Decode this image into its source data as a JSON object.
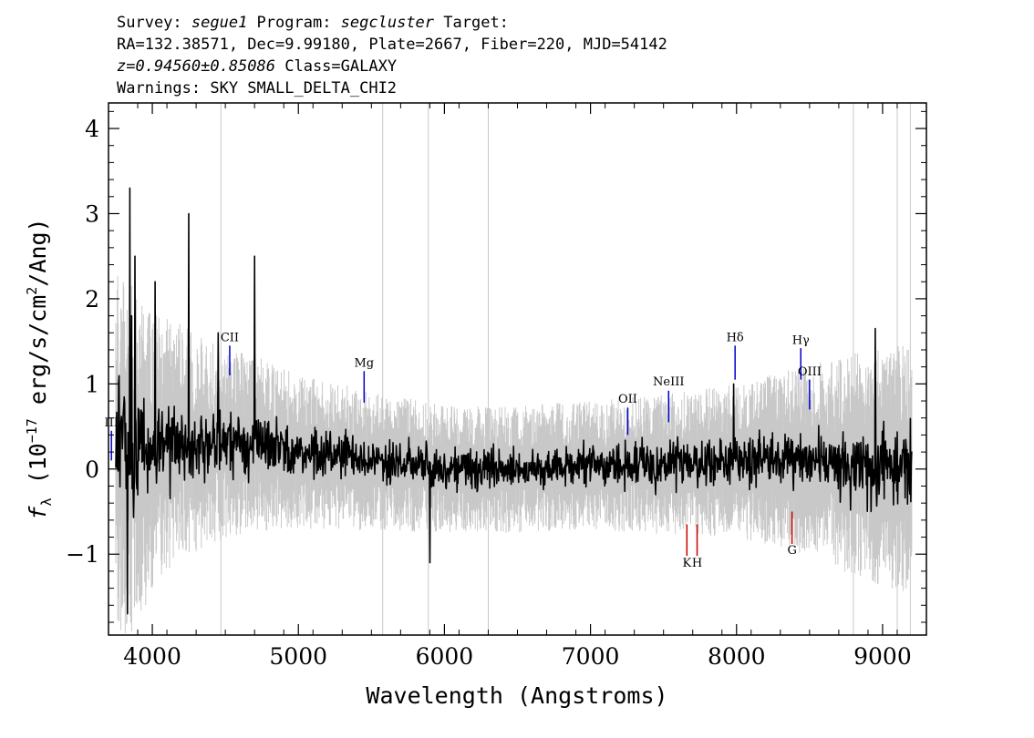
{
  "header": {
    "line1_prefix": "Survey: ",
    "survey": "segue1",
    "line1_mid": " Program: ",
    "program": "segcluster",
    "line1_suffix": " Target:",
    "line2": "RA=132.38571, Dec=9.99180, Plate=2667, Fiber=220, MJD=54142",
    "redshift": "z=0.94560±0.85086",
    "class_text": " Class=GALAXY",
    "warnings": "Warnings: SKY SMALL_DELTA_CHI2"
  },
  "chart_data": {
    "type": "line",
    "title": "",
    "xlabel": "Wavelength (Angstroms)",
    "ylabel": "fλ (10⁻¹⁷ erg/s/cm²/Ang)",
    "ylabel_parts": {
      "f": "f",
      "sub": "λ",
      "pre": " (10",
      "exp1": "−17",
      "mid": " erg/s/cm",
      "exp2": "2",
      "post": "/Ang)"
    },
    "xlim": [
      3700,
      9300
    ],
    "ylim": [
      -1.95,
      4.3
    ],
    "xticks": [
      4000,
      5000,
      6000,
      7000,
      8000,
      9000
    ],
    "xtick_labels": [
      "4000",
      "5000",
      "6000",
      "7000",
      "8000",
      "9000"
    ],
    "yticks": [
      -1,
      0,
      1,
      2,
      3,
      4
    ],
    "ytick_labels": [
      "−1",
      "0",
      "1",
      "2",
      "3",
      "4"
    ],
    "grid": false,
    "series": [
      {
        "role": "flux",
        "color": "#000000",
        "anchors_x": [
          3750,
          3800,
          3850,
          3900,
          4000,
          4100,
          4200,
          4300,
          4500,
          4700,
          5000,
          5500,
          6000,
          6500,
          7000,
          7500,
          8000,
          8500,
          8800,
          9000,
          9200
        ],
        "anchors_y": [
          0.2,
          0.3,
          0.1,
          0.15,
          0.2,
          0.3,
          0.35,
          0.3,
          0.3,
          0.3,
          0.2,
          0.1,
          0.0,
          0.0,
          0.05,
          0.05,
          0.1,
          0.1,
          0.05,
          0.05,
          0.0
        ],
        "spikes": [
          [
            3830,
            -1.7
          ],
          [
            3845,
            3.3
          ],
          [
            3860,
            1.8
          ],
          [
            3880,
            2.5
          ],
          [
            4020,
            2.2
          ],
          [
            4250,
            3.0
          ],
          [
            4450,
            1.6
          ],
          [
            4700,
            2.5
          ],
          [
            5900,
            -1.1
          ],
          [
            7980,
            1.0
          ],
          [
            8950,
            1.65
          ]
        ]
      },
      {
        "role": "error",
        "color": "#c8c8c8",
        "anchors_x": [
          3750,
          3850,
          4000,
          4200,
          4500,
          5000,
          6000,
          7000,
          8000,
          8500,
          9000,
          9200
        ],
        "anchors_sigma": [
          1.6,
          1.4,
          1.1,
          0.9,
          0.75,
          0.6,
          0.5,
          0.5,
          0.6,
          0.75,
          0.95,
          1.0
        ]
      }
    ],
    "annotations": [
      {
        "label": "CII",
        "wavelength": 4530,
        "y_start": 1.1,
        "y_end": 1.45,
        "text_y": 1.5,
        "color": "#0000cc"
      },
      {
        "label": "Mg",
        "wavelength": 5450,
        "y_start": 0.78,
        "y_end": 1.15,
        "text_y": 1.2,
        "color": "#0000cc"
      },
      {
        "label": "OII",
        "wavelength": 7255,
        "y_start": 0.4,
        "y_end": 0.72,
        "text_y": 0.78,
        "color": "#0000cc"
      },
      {
        "label": "NeIII",
        "wavelength": 7535,
        "y_start": 0.55,
        "y_end": 0.92,
        "text_y": 0.98,
        "color": "#0000cc"
      },
      {
        "label": "Hδ",
        "wavelength": 7990,
        "y_start": 1.05,
        "y_end": 1.45,
        "text_y": 1.5,
        "color": "#0000cc"
      },
      {
        "label": "Hγ",
        "wavelength": 8440,
        "y_start": 1.05,
        "y_end": 1.42,
        "text_y": 1.47,
        "color": "#0000cc"
      },
      {
        "label": "OIII",
        "wavelength": 8500,
        "y_start": 0.7,
        "y_end": 1.05,
        "text_y": 1.1,
        "color": "#0000cc"
      },
      {
        "label": "III",
        "wavelength": 3720,
        "y_start": 0.1,
        "y_end": 0.45,
        "text_y": 0.5,
        "color": "#0000cc"
      },
      {
        "label": "K",
        "wavelength": 7660,
        "y_start": -0.65,
        "y_end": -1.02,
        "text_y": -1.15,
        "color": "#cc0000"
      },
      {
        "label": "H",
        "wavelength": 7730,
        "y_start": -0.65,
        "y_end": -1.02,
        "text_y": -1.15,
        "color": "#cc0000"
      },
      {
        "label": "G",
        "wavelength": 8380,
        "y_start": -0.5,
        "y_end": -0.88,
        "text_y": -1.0,
        "color": "#cc0000"
      }
    ]
  }
}
